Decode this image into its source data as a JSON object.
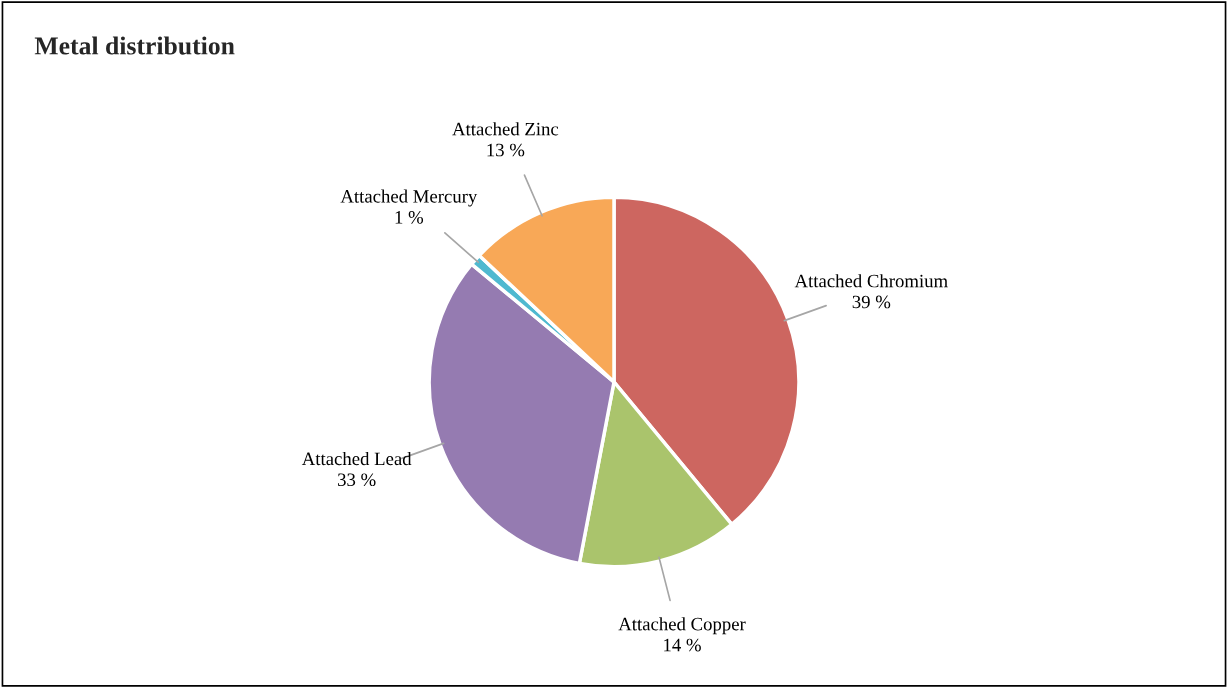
{
  "chart_data": {
    "type": "pie",
    "title": "Metal distribution",
    "categories": [
      "Attached Chromium",
      "Attached Copper",
      "Attached Lead",
      "Attached Mercury",
      "Attached Zinc"
    ],
    "values": [
      39,
      14,
      33,
      1,
      13
    ],
    "colors": [
      "#cd6660",
      "#aac46c",
      "#957bb1",
      "#4fb9d0",
      "#f8a857"
    ],
    "value_labels": [
      "39 %",
      "14 %",
      "33 %",
      "1 %",
      "13 %"
    ]
  }
}
